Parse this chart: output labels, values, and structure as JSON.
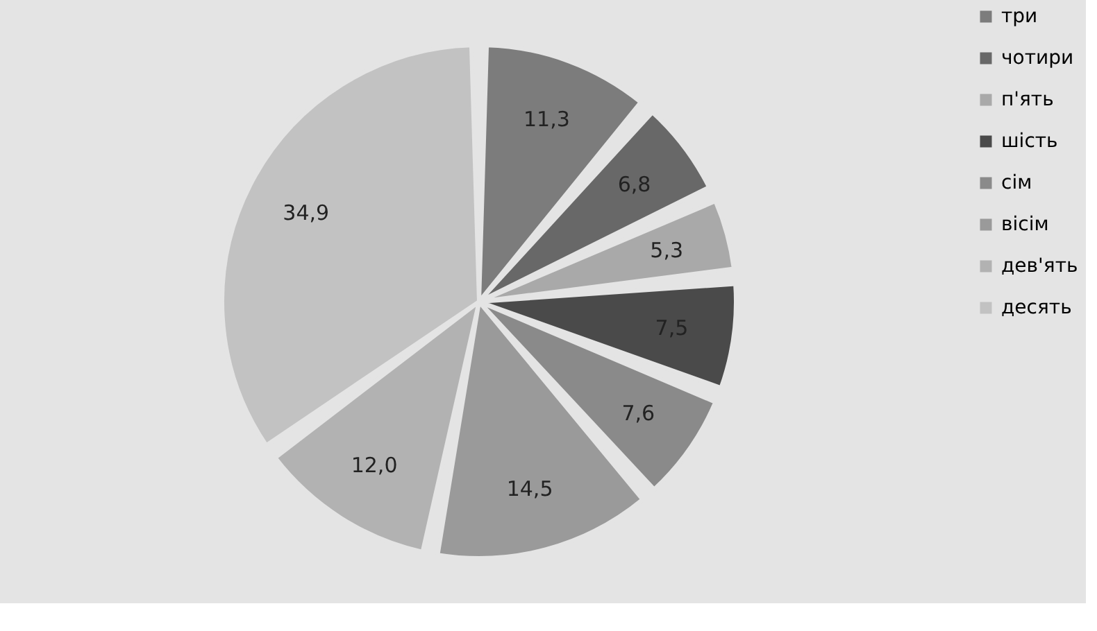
{
  "chart_data": {
    "type": "pie",
    "categories": [
      "три",
      "чотири",
      "п'ять",
      "шість",
      "сім",
      "вісім",
      "дев'ять",
      "десять"
    ],
    "values": [
      11.3,
      6.8,
      5.3,
      7.5,
      7.6,
      14.5,
      12.0,
      34.9
    ],
    "value_labels": [
      "11,3",
      "6,8",
      "5,3",
      "7,5",
      "7,6",
      "14,5",
      "12,0",
      "34,9"
    ],
    "colors": [
      "#7c7c7c",
      "#686868",
      "#a9a9a9",
      "#4a4a4a",
      "#8a8a8a",
      "#9a9a9a",
      "#b2b2b2",
      "#c2c2c2"
    ],
    "legend": "right"
  }
}
